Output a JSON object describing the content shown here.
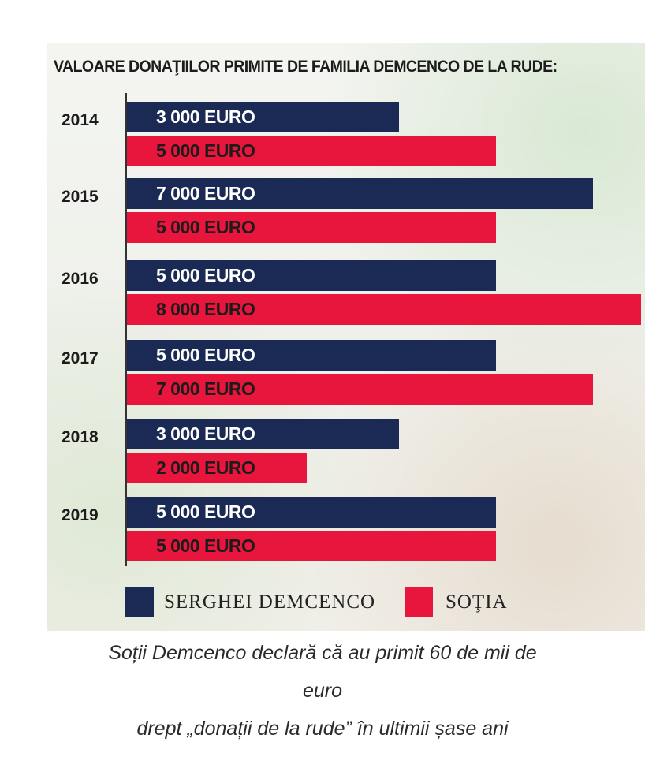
{
  "chart_data": {
    "type": "bar",
    "orientation": "horizontal",
    "title": "VALOARE DONAŢIILOR PRIMITE DE FAMILIA DEMCENCO DE LA RUDE:",
    "categories": [
      "2014",
      "2015",
      "2016",
      "2017",
      "2018",
      "2019"
    ],
    "series": [
      {
        "name": "SERGHEI DEMCENCO",
        "color": "#1b2a55",
        "values": [
          3000,
          7000,
          5000,
          5000,
          3000,
          5000
        ],
        "labels": [
          "3 000 EURO",
          "7 000 EURO",
          "5 000 EURO",
          "5 000 EURO",
          "3 000 EURO",
          "5 000 EURO"
        ]
      },
      {
        "name": "SOŢIA",
        "color": "#e8163c",
        "values": [
          5000,
          5000,
          8000,
          7000,
          2000,
          5000
        ],
        "labels": [
          "5 000 EURO",
          "5 000 EURO",
          "8 000 EURO",
          "7 000 EURO",
          "2 000 EURO",
          "5 000 EURO"
        ]
      }
    ],
    "unit": "EURO",
    "legend_position": "bottom"
  },
  "caption": {
    "line1": "Soții Demcenco declară că au primit 60 de mii de",
    "line2": "euro",
    "line3": "drept „donații de la rude” în ultimii șase ani"
  }
}
